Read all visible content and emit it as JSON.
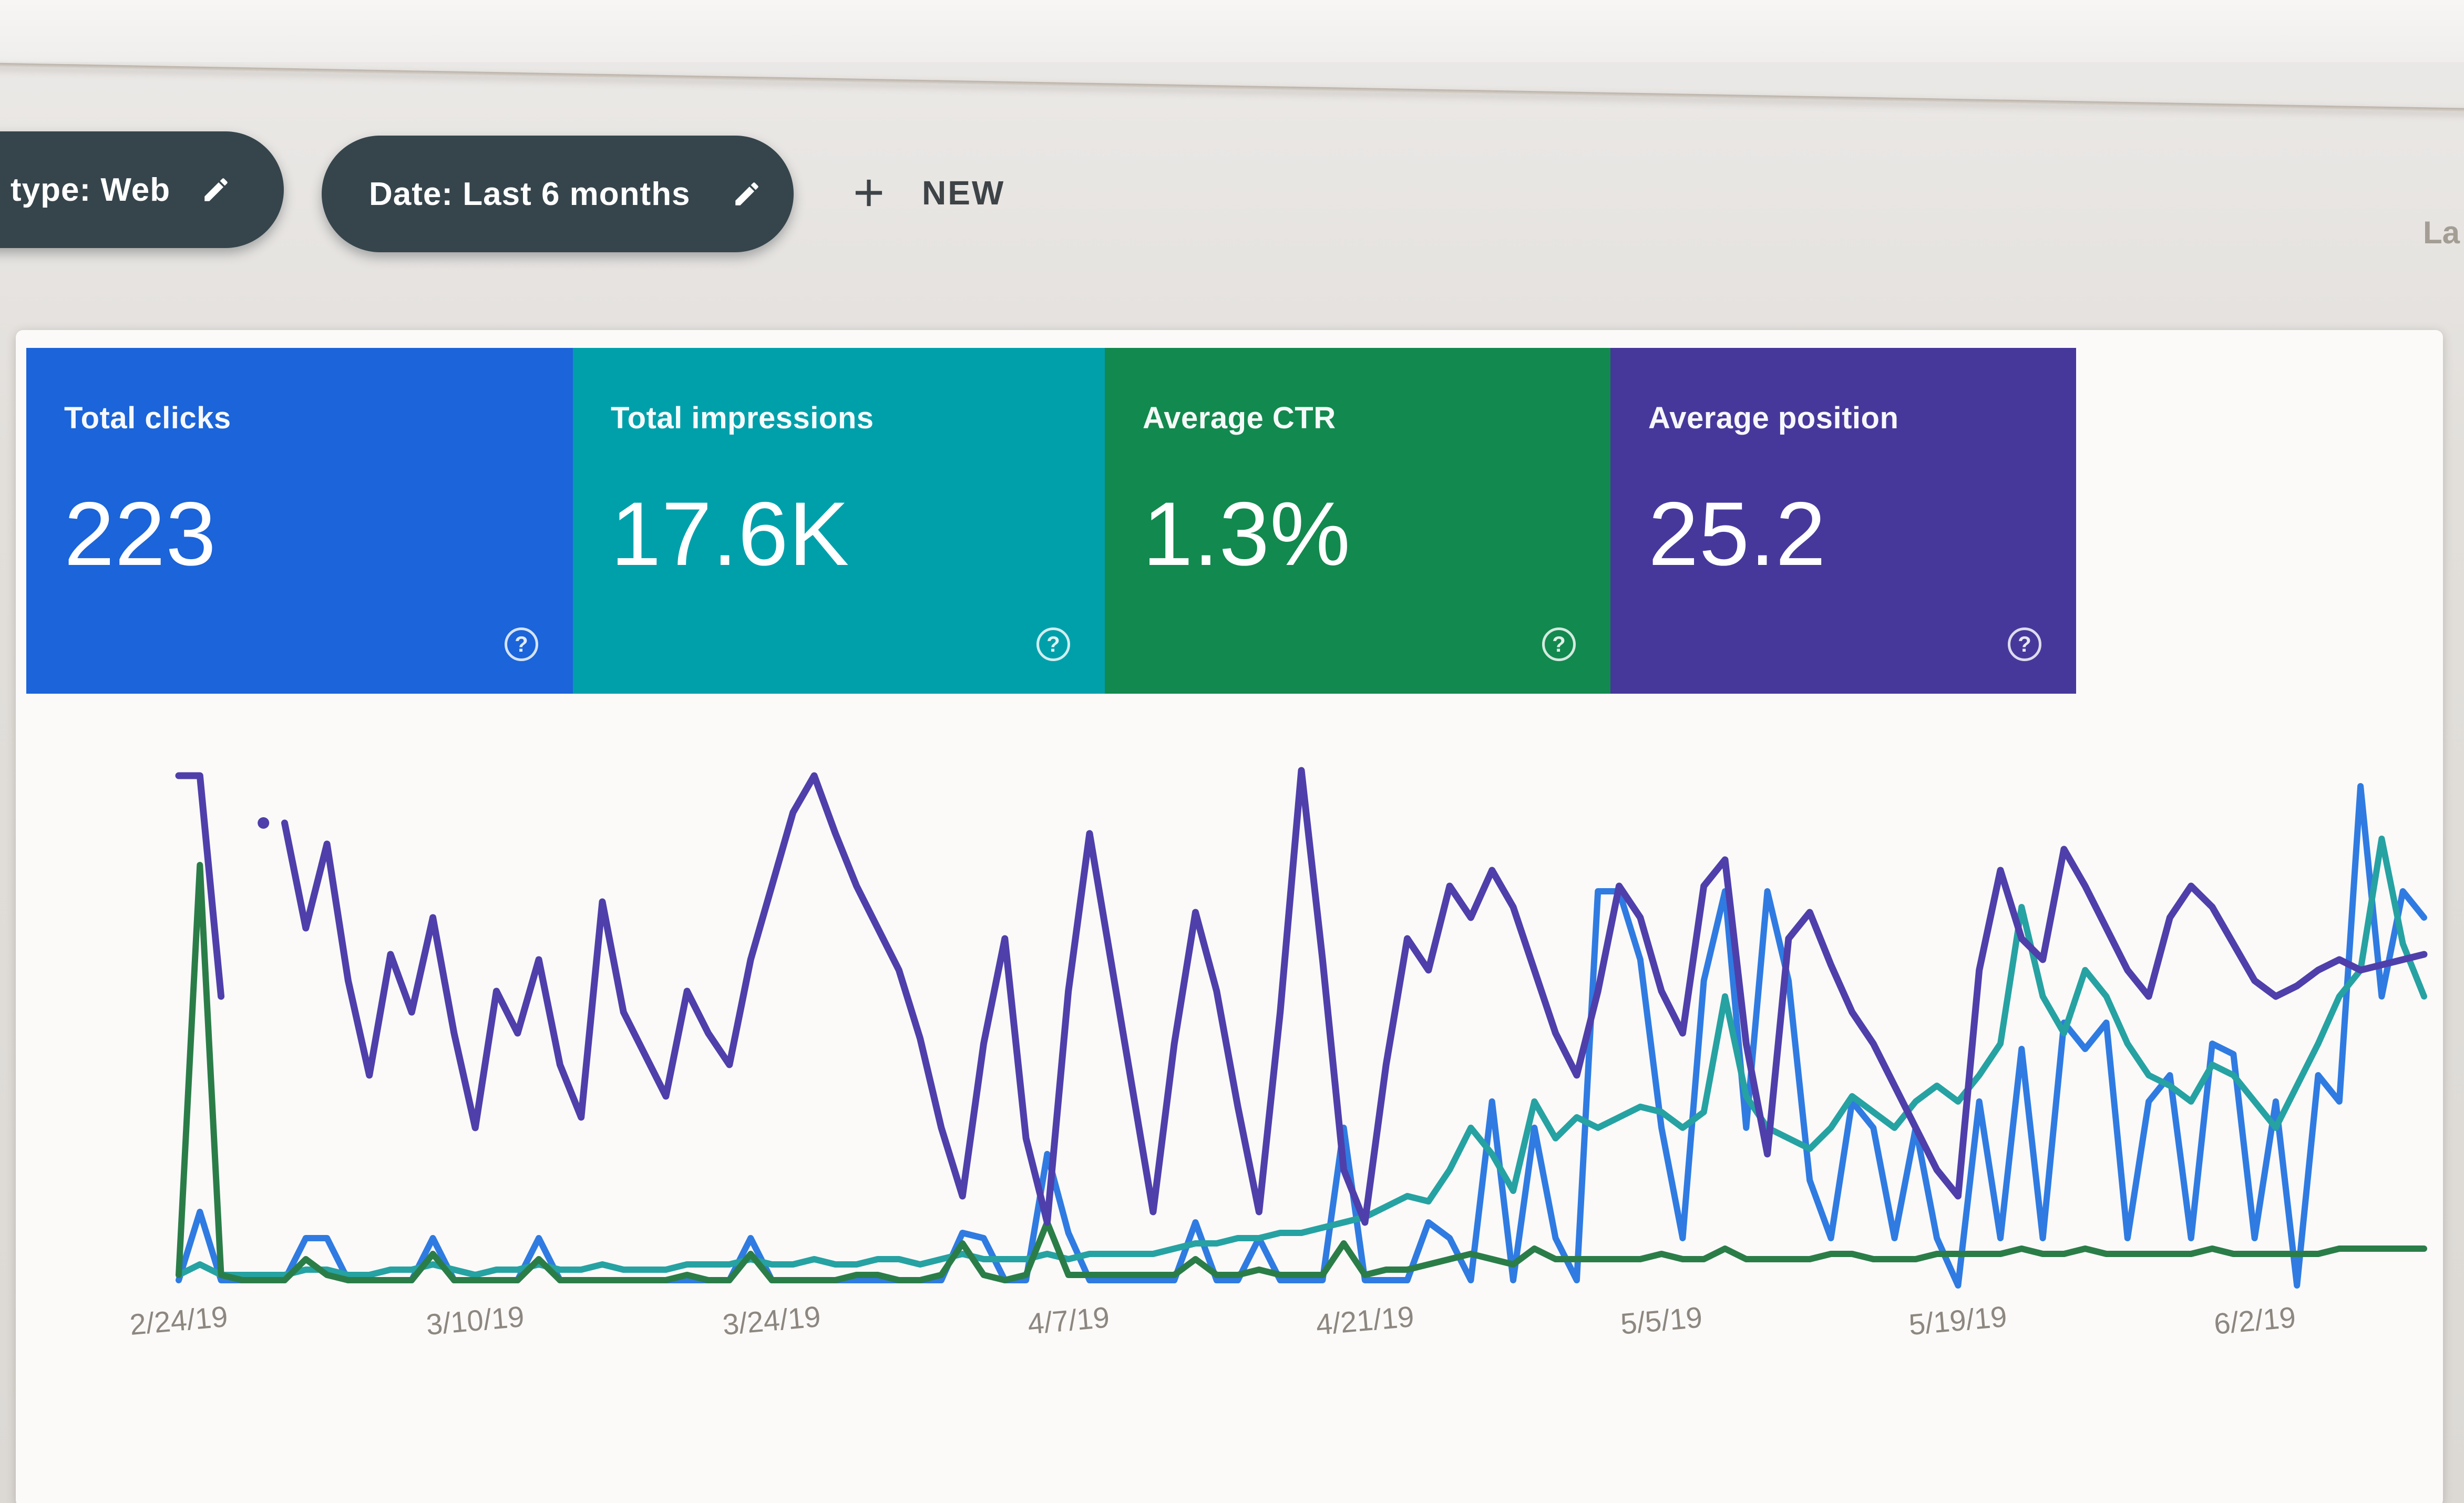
{
  "filter_bar": {
    "chips": [
      {
        "label": "type: Web",
        "icon": "pencil-edit"
      },
      {
        "label": "Date: Last 6 months",
        "icon": "pencil-edit"
      }
    ],
    "new_button_label": "NEW",
    "new_button_icon": "plus",
    "right_partial_text": "La"
  },
  "cards": [
    {
      "label": "Total clicks",
      "value": "223",
      "color": "#1b64d9",
      "help_icon": "question-circle"
    },
    {
      "label": "Total impressions",
      "value": "17.6K",
      "color": "#00a0ab",
      "help_icon": "question-circle"
    },
    {
      "label": "Average CTR",
      "value": "1.3%",
      "color": "#12894e",
      "help_icon": "question-circle"
    },
    {
      "label": "Average position",
      "value": "25.2",
      "color": "#46389b",
      "help_icon": "question-circle"
    }
  ],
  "chart_data": {
    "type": "line",
    "title": "",
    "xlabel": "",
    "ylabel": "",
    "grid": false,
    "legend": "none (series colors match the summary cards)",
    "x_tick_labels": [
      "2/24/19",
      "3/10/19",
      "3/24/19",
      "4/7/19",
      "4/21/19",
      "5/5/19",
      "5/19/19",
      "6/2/19"
    ],
    "x_tick_days": [
      0,
      14,
      28,
      42,
      56,
      70,
      84,
      98
    ],
    "days_span": 106,
    "x_start_date": "2/24/19",
    "ylim": [
      0,
      100
    ],
    "y_unit": "percent of plot height (estimated from pixels; no y-axis labels are shown)",
    "series": [
      {
        "name": "Clicks",
        "color": "#2f7be2",
        "values": [
          1,
          14,
          1,
          1,
          1,
          1,
          9,
          9,
          1,
          1,
          1,
          1,
          9,
          1,
          1,
          1,
          1,
          9,
          1,
          1,
          1,
          1,
          1,
          1,
          1,
          1,
          1,
          9,
          1,
          1,
          1,
          1,
          1,
          1,
          1,
          1,
          1,
          10,
          9,
          1,
          1,
          25,
          10,
          1,
          1,
          1,
          1,
          1,
          12,
          1,
          1,
          9,
          1,
          1,
          1,
          30,
          1,
          1,
          1,
          12,
          9,
          1,
          35,
          1,
          30,
          9,
          1,
          75,
          75,
          62,
          30,
          9,
          58,
          75,
          30,
          75,
          58,
          20,
          9,
          35,
          30,
          9,
          30,
          9,
          0,
          35,
          9,
          45,
          9,
          50,
          45,
          50,
          9,
          35,
          40,
          9,
          46,
          44,
          9,
          35,
          0,
          40,
          35,
          95,
          55,
          75,
          70
        ]
      },
      {
        "name": "Impressions",
        "color": "#26a2a2",
        "values": [
          2,
          4,
          2,
          2,
          2,
          2,
          3,
          3,
          2,
          2,
          3,
          3,
          4,
          3,
          2,
          3,
          3,
          4,
          3,
          3,
          4,
          3,
          3,
          3,
          4,
          4,
          4,
          5,
          4,
          4,
          5,
          4,
          4,
          5,
          5,
          4,
          5,
          6,
          5,
          5,
          5,
          6,
          5,
          6,
          6,
          6,
          6,
          7,
          8,
          8,
          9,
          9,
          10,
          10,
          11,
          12,
          13,
          15,
          17,
          16,
          22,
          30,
          25,
          18,
          35,
          28,
          32,
          30,
          32,
          34,
          33,
          30,
          33,
          55,
          36,
          30,
          28,
          26,
          30,
          36,
          33,
          30,
          35,
          38,
          35,
          40,
          46,
          72,
          55,
          48,
          60,
          55,
          46,
          40,
          38,
          35,
          42,
          40,
          35,
          30,
          38,
          46,
          55,
          60,
          85,
          65,
          55
        ]
      },
      {
        "name": "CTR",
        "color": "#2b7d48",
        "values": [
          2,
          80,
          2,
          1,
          1,
          1,
          5,
          2,
          1,
          1,
          1,
          1,
          6,
          1,
          1,
          1,
          1,
          5,
          1,
          1,
          1,
          1,
          1,
          1,
          2,
          1,
          1,
          6,
          1,
          1,
          1,
          1,
          2,
          2,
          1,
          1,
          2,
          8,
          2,
          1,
          2,
          12,
          2,
          2,
          2,
          2,
          2,
          2,
          5,
          2,
          2,
          3,
          2,
          2,
          2,
          8,
          2,
          3,
          3,
          4,
          5,
          6,
          5,
          4,
          7,
          5,
          5,
          5,
          5,
          5,
          6,
          5,
          5,
          7,
          5,
          5,
          5,
          5,
          6,
          6,
          5,
          5,
          5,
          6,
          6,
          6,
          6,
          7,
          6,
          6,
          7,
          6,
          6,
          6,
          6,
          6,
          7,
          6,
          6,
          6,
          6,
          6,
          7,
          7,
          7,
          7,
          7
        ]
      },
      {
        "name": "Position",
        "color": "#4f3fab",
        "values": [
          97,
          97,
          55,
          null,
          null,
          88,
          68,
          84,
          58,
          40,
          63,
          52,
          70,
          48,
          30,
          56,
          48,
          62,
          42,
          32,
          73,
          52,
          44,
          36,
          56,
          48,
          42,
          62,
          76,
          90,
          97,
          86,
          76,
          68,
          60,
          47,
          30,
          17,
          46,
          66,
          28,
          12,
          56,
          86,
          62,
          38,
          14,
          46,
          71,
          56,
          34,
          14,
          52,
          98,
          62,
          22,
          12,
          42,
          66,
          60,
          76,
          70,
          79,
          72,
          60,
          48,
          40,
          56,
          76,
          70,
          56,
          48,
          76,
          81,
          46,
          25,
          66,
          71,
          61,
          52,
          46,
          38,
          30,
          22,
          17,
          60,
          79,
          66,
          62,
          83,
          76,
          68,
          60,
          55,
          70,
          76,
          72,
          65,
          58,
          55,
          57,
          60,
          62,
          60,
          61,
          62,
          63
        ],
        "isolated_point": {
          "day": 4,
          "value": 88
        }
      }
    ]
  }
}
